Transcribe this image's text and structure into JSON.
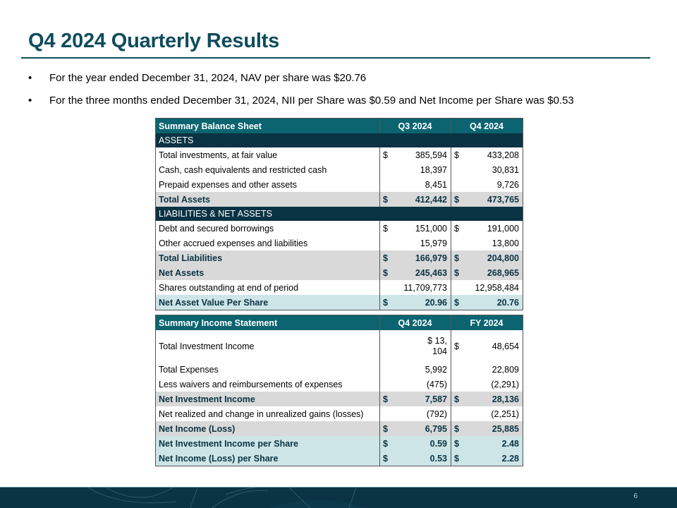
{
  "title": "Q4 2024 Quarterly Results",
  "bullets": [
    "For the year ended  December 31, 2024, NAV per share was $20.76",
    "For the three months ended December 31, 2024, NII per Share was $0.59 and Net Income per Share was $0.53"
  ],
  "balance_sheet": {
    "header": [
      "Summary Balance Sheet",
      "Q3 2024",
      "Q4 2024"
    ],
    "rows": [
      {
        "type": "section",
        "label": "ASSETS"
      },
      {
        "type": "normal",
        "label": "Total investments, at fair value",
        "d1": "$",
        "v1": "385,594",
        "d2": "$",
        "v2": "433,208"
      },
      {
        "type": "normal",
        "label": "Cash, cash equivalents and restricted cash",
        "d1": "",
        "v1": "18,397",
        "d2": "",
        "v2": "30,831"
      },
      {
        "type": "normal",
        "label": "Prepaid expenses and other assets",
        "d1": "",
        "v1": "8,451",
        "d2": "",
        "v2": "9,726"
      },
      {
        "type": "gray",
        "label": "Total Assets",
        "d1": "$",
        "v1": "412,442",
        "d2": "$",
        "v2": "473,765"
      },
      {
        "type": "section",
        "label": "LIABILITIES & NET ASSETS"
      },
      {
        "type": "normal",
        "label": "Debt and secured borrowings",
        "d1": "$",
        "v1": "151,000",
        "d2": "$",
        "v2": "191,000"
      },
      {
        "type": "normal",
        "label": "Other accrued expenses and liabilities",
        "d1": "",
        "v1": "15,979",
        "d2": "",
        "v2": "13,800"
      },
      {
        "type": "gray",
        "label": "Total Liabilities",
        "d1": "$",
        "v1": "166,979",
        "d2": "$",
        "v2": "204,800"
      },
      {
        "type": "gray",
        "label": "Net Assets",
        "d1": "$",
        "v1": "245,463",
        "d2": "$",
        "v2": "268,965"
      },
      {
        "type": "normal",
        "label": "Shares outstanding at end of period",
        "d1": "",
        "v1": "11,709,773",
        "d2": "",
        "v2": "12,958,484"
      },
      {
        "type": "teal",
        "label": "Net Asset Value Per Share",
        "d1": "$",
        "v1": "20.96",
        "d2": "$",
        "v2": "20.76"
      }
    ]
  },
  "income_statement": {
    "header": [
      "Summary Income Statement",
      "Q4 2024",
      "FY 2024"
    ],
    "rows": [
      {
        "type": "tall",
        "label": "Total Investment Income",
        "d1": "$",
        "v1": "13,104",
        "d2": "$",
        "v2": "48,654"
      },
      {
        "type": "normal",
        "label": "Total Expenses",
        "d1": "",
        "v1": "5,992",
        "d2": "",
        "v2": "22,809"
      },
      {
        "type": "normal",
        "label": "Less waivers and reimbursements of expenses",
        "d1": "",
        "v1": "(475)",
        "d2": "",
        "v2": "(2,291)"
      },
      {
        "type": "gray",
        "label": "Net Investment Income",
        "d1": "$",
        "v1": "7,587",
        "d2": "$",
        "v2": "28,136"
      },
      {
        "type": "normal",
        "label": "Net realized and change in unrealized gains (losses)",
        "d1": "",
        "v1": "(792)",
        "d2": "",
        "v2": "(2,251)"
      },
      {
        "type": "gray",
        "label": "Net Income (Loss)",
        "d1": "$",
        "v1": "6,795",
        "d2": "$",
        "v2": "25,885"
      },
      {
        "type": "teal",
        "label": "Net Investment Income per Share",
        "d1": "$",
        "v1": "0.59",
        "d2": "$",
        "v2": "2.48"
      },
      {
        "type": "teal",
        "label": "Net Income (Loss) per Share",
        "d1": "$",
        "v1": "0.53",
        "d2": "$",
        "v2": "2.28"
      }
    ]
  },
  "footer": {
    "page_number": "6"
  },
  "colors": {
    "title": "#0f4c5c",
    "header": "#0b6470",
    "section": "#0a3344",
    "gray": "#d9d9d9",
    "teal": "#cde5e7"
  }
}
